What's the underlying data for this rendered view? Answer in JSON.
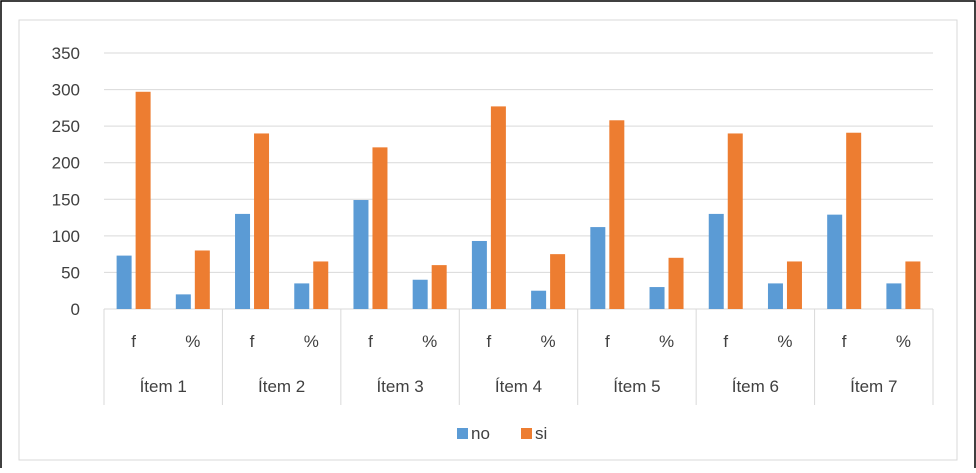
{
  "chart_data": {
    "type": "bar",
    "groups": [
      "Ítem 1",
      "Ítem 2",
      "Ítem 3",
      "Ítem 4",
      "Ítem 5",
      "Ítem 6",
      "Ítem 7"
    ],
    "subcategories": [
      "f",
      "%"
    ],
    "series": [
      {
        "name": "no",
        "color": "#5b9bd5",
        "values": [
          73,
          20,
          130,
          35,
          149,
          40,
          93,
          25,
          112,
          30,
          130,
          35,
          129,
          35
        ]
      },
      {
        "name": "si",
        "color": "#ed7d31",
        "values": [
          297,
          80,
          240,
          65,
          221,
          60,
          277,
          75,
          258,
          70,
          240,
          65,
          241,
          65
        ]
      }
    ],
    "ylim": [
      0,
      350
    ],
    "yticks": [
      0,
      50,
      100,
      150,
      200,
      250,
      300,
      350
    ],
    "grid": true,
    "legend_position": "bottom"
  }
}
